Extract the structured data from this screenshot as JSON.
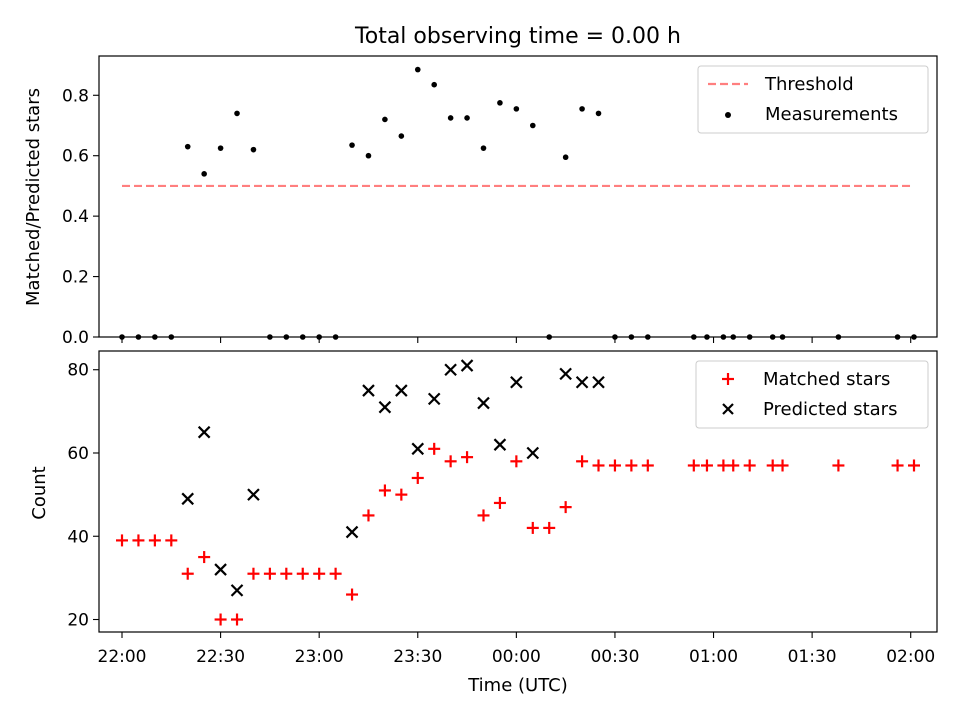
{
  "figure": {
    "title": "Total observing time = 0.00 h"
  },
  "chart_data": [
    {
      "type": "scatter",
      "ylabel": "Matched/Predicted stars",
      "ylim": [
        0,
        0.93
      ],
      "yticks": [
        0.0,
        0.2,
        0.4,
        0.6,
        0.8
      ],
      "ytick_labels": [
        "0.0",
        "0.2",
        "0.4",
        "0.6",
        "0.8"
      ],
      "xlim": [
        "21:53",
        "02:08"
      ],
      "grid": false,
      "legend_position": "top-right",
      "threshold": {
        "name": "Threshold",
        "value": 0.5,
        "x_range": [
          "22:00",
          "02:00"
        ],
        "color": "#ff7f7f",
        "style": "dashed"
      },
      "series": [
        {
          "name": "Measurements",
          "marker": "dot",
          "color": "#000000",
          "points": [
            [
              "22:00",
              0.0
            ],
            [
              "22:05",
              0.0
            ],
            [
              "22:10",
              0.0
            ],
            [
              "22:15",
              0.0
            ],
            [
              "22:20",
              0.63
            ],
            [
              "22:25",
              0.54
            ],
            [
              "22:30",
              0.625
            ],
            [
              "22:35",
              0.74
            ],
            [
              "22:40",
              0.62
            ],
            [
              "22:45",
              0.0
            ],
            [
              "22:50",
              0.0
            ],
            [
              "22:55",
              0.0
            ],
            [
              "23:00",
              0.0
            ],
            [
              "23:05",
              0.0
            ],
            [
              "23:10",
              0.635
            ],
            [
              "23:15",
              0.6
            ],
            [
              "23:20",
              0.72
            ],
            [
              "23:25",
              0.665
            ],
            [
              "23:30",
              0.885
            ],
            [
              "23:35",
              0.835
            ],
            [
              "23:40",
              0.725
            ],
            [
              "23:45",
              0.725
            ],
            [
              "23:50",
              0.625
            ],
            [
              "23:55",
              0.775
            ],
            [
              "00:00",
              0.755
            ],
            [
              "00:05",
              0.7
            ],
            [
              "00:10",
              0.0
            ],
            [
              "00:15",
              0.595
            ],
            [
              "00:20",
              0.755
            ],
            [
              "00:25",
              0.74
            ],
            [
              "00:30",
              0.0
            ],
            [
              "00:35",
              0.0
            ],
            [
              "00:40",
              0.0
            ],
            [
              "00:54",
              0.0
            ],
            [
              "00:58",
              0.0
            ],
            [
              "01:03",
              0.0
            ],
            [
              "01:06",
              0.0
            ],
            [
              "01:11",
              0.0
            ],
            [
              "01:18",
              0.0
            ],
            [
              "01:21",
              0.0
            ],
            [
              "01:38",
              0.0
            ],
            [
              "01:56",
              0.0
            ],
            [
              "02:01",
              0.0
            ]
          ]
        }
      ]
    },
    {
      "type": "scatter",
      "xlabel": "Time (UTC)",
      "ylabel": "Count",
      "ylim": [
        17,
        84.5
      ],
      "yticks": [
        20,
        40,
        60,
        80
      ],
      "ytick_labels": [
        "20",
        "40",
        "60",
        "80"
      ],
      "xlim": [
        "21:53",
        "02:08"
      ],
      "xticks": [
        "22:00",
        "22:30",
        "23:00",
        "23:30",
        "00:00",
        "00:30",
        "01:00",
        "01:30",
        "02:00"
      ],
      "grid": false,
      "legend_position": "top-right",
      "series": [
        {
          "name": "Matched stars",
          "marker": "plus",
          "color": "#ff0000",
          "points": [
            [
              "22:00",
              39
            ],
            [
              "22:05",
              39
            ],
            [
              "22:10",
              39
            ],
            [
              "22:15",
              39
            ],
            [
              "22:20",
              31
            ],
            [
              "22:25",
              35
            ],
            [
              "22:30",
              20
            ],
            [
              "22:35",
              20
            ],
            [
              "22:40",
              31
            ],
            [
              "22:45",
              31
            ],
            [
              "22:50",
              31
            ],
            [
              "22:55",
              31
            ],
            [
              "23:00",
              31
            ],
            [
              "23:05",
              31
            ],
            [
              "23:10",
              26
            ],
            [
              "23:15",
              45
            ],
            [
              "23:20",
              51
            ],
            [
              "23:25",
              50
            ],
            [
              "23:30",
              54
            ],
            [
              "23:35",
              61
            ],
            [
              "23:40",
              58
            ],
            [
              "23:45",
              59
            ],
            [
              "23:50",
              45
            ],
            [
              "23:55",
              48
            ],
            [
              "00:00",
              58
            ],
            [
              "00:05",
              42
            ],
            [
              "00:10",
              42
            ],
            [
              "00:15",
              47
            ],
            [
              "00:20",
              58
            ],
            [
              "00:25",
              57
            ],
            [
              "00:30",
              57
            ],
            [
              "00:35",
              57
            ],
            [
              "00:40",
              57
            ],
            [
              "00:54",
              57
            ],
            [
              "00:58",
              57
            ],
            [
              "01:03",
              57
            ],
            [
              "01:06",
              57
            ],
            [
              "01:11",
              57
            ],
            [
              "01:18",
              57
            ],
            [
              "01:21",
              57
            ],
            [
              "01:38",
              57
            ],
            [
              "01:56",
              57
            ],
            [
              "02:01",
              57
            ]
          ]
        },
        {
          "name": "Predicted stars",
          "marker": "x",
          "color": "#000000",
          "points": [
            [
              "22:20",
              49
            ],
            [
              "22:25",
              65
            ],
            [
              "22:30",
              32
            ],
            [
              "22:35",
              27
            ],
            [
              "22:40",
              50
            ],
            [
              "23:10",
              41
            ],
            [
              "23:15",
              75
            ],
            [
              "23:20",
              71
            ],
            [
              "23:25",
              75
            ],
            [
              "23:30",
              61
            ],
            [
              "23:35",
              73
            ],
            [
              "23:40",
              80
            ],
            [
              "23:45",
              81
            ],
            [
              "23:50",
              72
            ],
            [
              "23:55",
              62
            ],
            [
              "00:00",
              77
            ],
            [
              "00:05",
              60
            ],
            [
              "00:15",
              79
            ],
            [
              "00:20",
              77
            ],
            [
              "00:25",
              77
            ]
          ]
        }
      ]
    }
  ]
}
